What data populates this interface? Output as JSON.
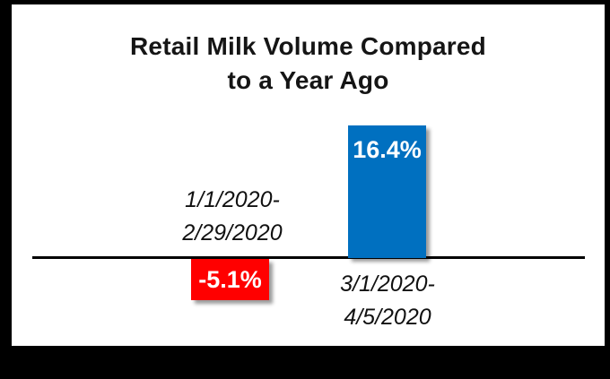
{
  "chart": {
    "title_line1": "Retail Milk Volume Compared",
    "title_line2": "to a Year Ago",
    "bars": [
      {
        "period_line1": "1/1/2020-",
        "period_line2": "2/29/2020",
        "value_label": "-5.1%"
      },
      {
        "period_line1": "3/1/2020-",
        "period_line2": "4/5/2020",
        "value_label": "16.4%"
      }
    ]
  },
  "chart_data": {
    "type": "bar",
    "title": "Retail Milk Volume Compared to a Year Ago",
    "categories": [
      "1/1/2020-2/29/2020",
      "3/1/2020-4/5/2020"
    ],
    "values": [
      -5.1,
      16.4
    ],
    "data_labels": [
      "-5.1%",
      "16.4%"
    ],
    "unit": "%",
    "colors": {
      "negative": "#FF0000",
      "positive": "#0070C0",
      "axis_line": "#000000",
      "background": "#FFFFFF",
      "frame": "#000000"
    },
    "axis": {
      "baseline_value": 0,
      "gridlines": false,
      "y_axis_visible": false,
      "x_axis_visible": true
    },
    "legend": false
  }
}
